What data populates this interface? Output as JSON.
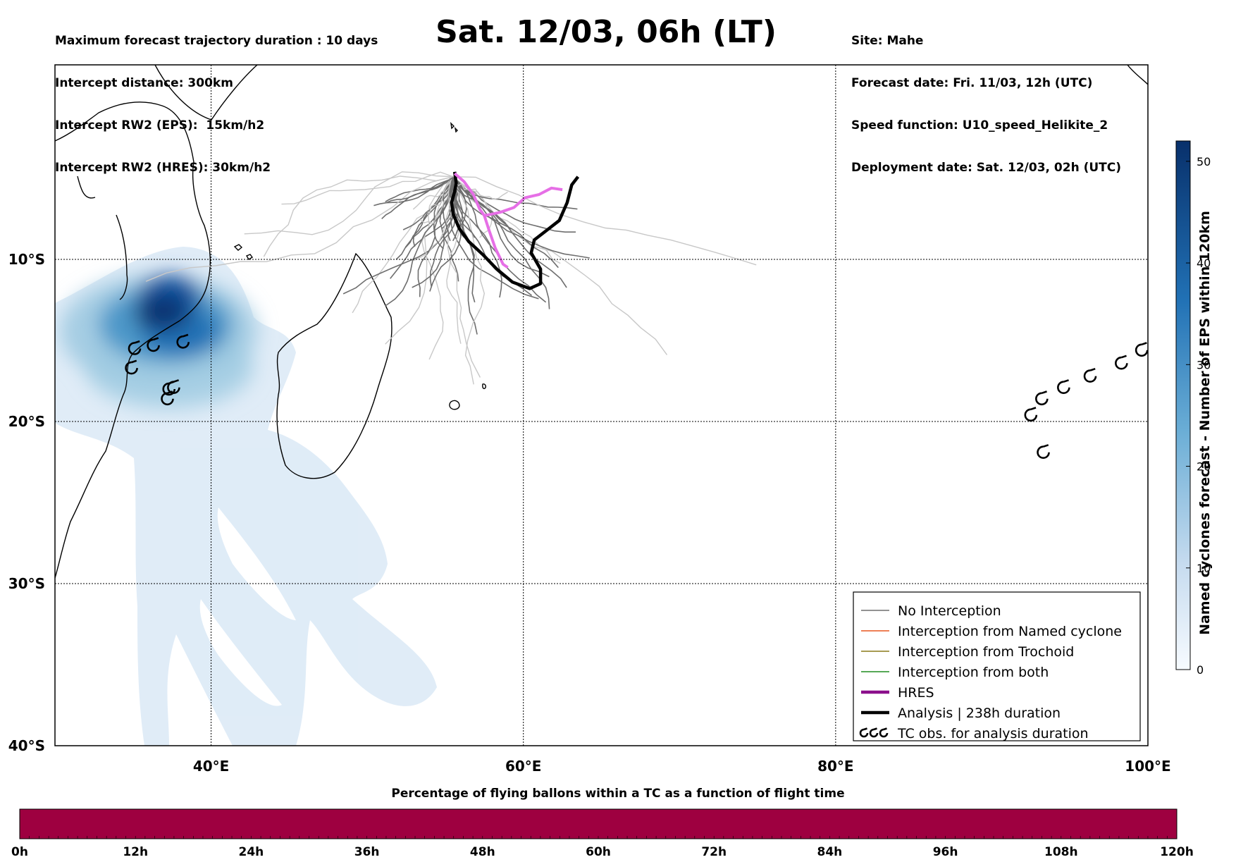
{
  "header_left": [
    "Maximum forecast trajectory duration : 10 days",
    "Intercept distance: 300km",
    "Intercept RW2 (EPS):  15km/h2",
    "Intercept RW2 (HRES): 30km/h2"
  ],
  "title": "Sat. 12/03, 06h (LT)",
  "header_right": [
    "Site: Mahe",
    "Forecast date: Fri. 11/03, 12h (UTC)",
    "Speed function: U10_speed_Helikite_2",
    "Deployment date: Sat. 12/03, 02h (UTC)"
  ],
  "map": {
    "lon_range": [
      30,
      100
    ],
    "lat_range": [
      -40,
      2
    ],
    "lon_ticks": [
      {
        "value": 40,
        "label": "40°E"
      },
      {
        "value": 60,
        "label": "60°E"
      },
      {
        "value": 80,
        "label": "80°E"
      },
      {
        "value": 100,
        "label": "100°E"
      }
    ],
    "lat_ticks": [
      {
        "value": -10,
        "label": "10°S"
      },
      {
        "value": -20,
        "label": "20°S"
      },
      {
        "value": -30,
        "label": "30°S"
      },
      {
        "value": -40,
        "label": "40°S"
      }
    ],
    "grid": true
  },
  "legend": [
    {
      "label": "No Interception",
      "color": "#6e6e6e",
      "style": "thin"
    },
    {
      "label": "Interception from Named cyclone",
      "color": "#e8561e",
      "style": "thin"
    },
    {
      "label": "Interception from Trochoid",
      "color": "#8a7a18",
      "style": "thin"
    },
    {
      "label": "Interception from both",
      "color": "#1e8c1e",
      "style": "thin"
    },
    {
      "label": "HRES",
      "color": "#8b0f8b",
      "style": "thick"
    },
    {
      "label": "Analysis | 238h duration",
      "color": "#000000",
      "style": "thick"
    },
    {
      "label": "TC obs. for analysis duration",
      "color": "#000000",
      "style": "tc-symbol"
    }
  ],
  "colors": {
    "density_max": "#08306b",
    "density_min": "#deebf7",
    "hres": "#e66fe6",
    "hres_dark": "#9a1a9a",
    "analysis": "#000000",
    "eps_light": "#c8c8c8",
    "eps_dark": "#6e6e6e",
    "bottom_bar": "#9e0040"
  },
  "colorbar_right": {
    "label": "Named cyclones forecast - Number of EPS within 120km",
    "range": [
      0,
      52
    ],
    "ticks": [
      0,
      10,
      20,
      30,
      40,
      50
    ]
  },
  "colorbar_bottom": {
    "title": "Percentage of flying ballons within a TC as a function of flight time",
    "ticks": [
      "0h",
      "12h",
      "24h",
      "36h",
      "48h",
      "60h",
      "72h",
      "84h",
      "96h",
      "108h",
      "120h"
    ]
  },
  "chart_data": {
    "type": "map",
    "deployment_site": {
      "name": "Mahe",
      "lon": 55.5,
      "lat": -4.6
    },
    "analysis_track": [
      [
        55.6,
        -4.6
      ],
      [
        55.7,
        -5.3
      ],
      [
        55.6,
        -5.8
      ],
      [
        55.4,
        -6.5
      ],
      [
        55.5,
        -7.2
      ],
      [
        55.9,
        -8.1
      ],
      [
        56.5,
        -8.9
      ],
      [
        57.4,
        -9.7
      ],
      [
        58.3,
        -10.6
      ],
      [
        59.3,
        -11.4
      ],
      [
        60.4,
        -11.8
      ],
      [
        61.1,
        -11.5
      ],
      [
        61.1,
        -10.6
      ],
      [
        60.5,
        -9.6
      ],
      [
        60.7,
        -8.8
      ],
      [
        61.5,
        -8.2
      ],
      [
        62.3,
        -7.6
      ],
      [
        62.8,
        -6.5
      ],
      [
        63.1,
        -5.4
      ],
      [
        63.5,
        -4.9
      ]
    ],
    "hres_track": [
      [
        55.6,
        -4.7
      ],
      [
        56.2,
        -5.2
      ],
      [
        56.8,
        -6.0
      ],
      [
        57.2,
        -6.9
      ],
      [
        57.5,
        -7.3
      ],
      [
        57.8,
        -8.2
      ],
      [
        58.2,
        -9.3
      ],
      [
        58.7,
        -10.3
      ],
      [
        59.0,
        -10.5
      ]
    ],
    "hres_branch": [
      [
        57.5,
        -7.3
      ],
      [
        58.5,
        -7.1
      ],
      [
        59.4,
        -6.8
      ],
      [
        60.1,
        -6.2
      ],
      [
        61.0,
        -6.0
      ],
      [
        61.8,
        -5.6
      ],
      [
        62.5,
        -5.7
      ]
    ],
    "tc_observations": [
      {
        "lon": 34.9,
        "lat": -16.7
      },
      {
        "lon": 35.1,
        "lat": -15.5
      },
      {
        "lon": 36.3,
        "lat": -15.3
      },
      {
        "lon": 38.2,
        "lat": -15.1
      },
      {
        "lon": 37.3,
        "lat": -18.0
      },
      {
        "lon": 37.6,
        "lat": -17.9
      },
      {
        "lon": 37.2,
        "lat": -18.6
      },
      {
        "lon": 92.5,
        "lat": -19.6
      },
      {
        "lon": 93.2,
        "lat": -18.6
      },
      {
        "lon": 94.6,
        "lat": -17.9
      },
      {
        "lon": 96.3,
        "lat": -17.2
      },
      {
        "lon": 98.3,
        "lat": -16.4
      },
      {
        "lon": 99.6,
        "lat": -15.6
      },
      {
        "lon": 93.3,
        "lat": -21.9
      }
    ]
  }
}
